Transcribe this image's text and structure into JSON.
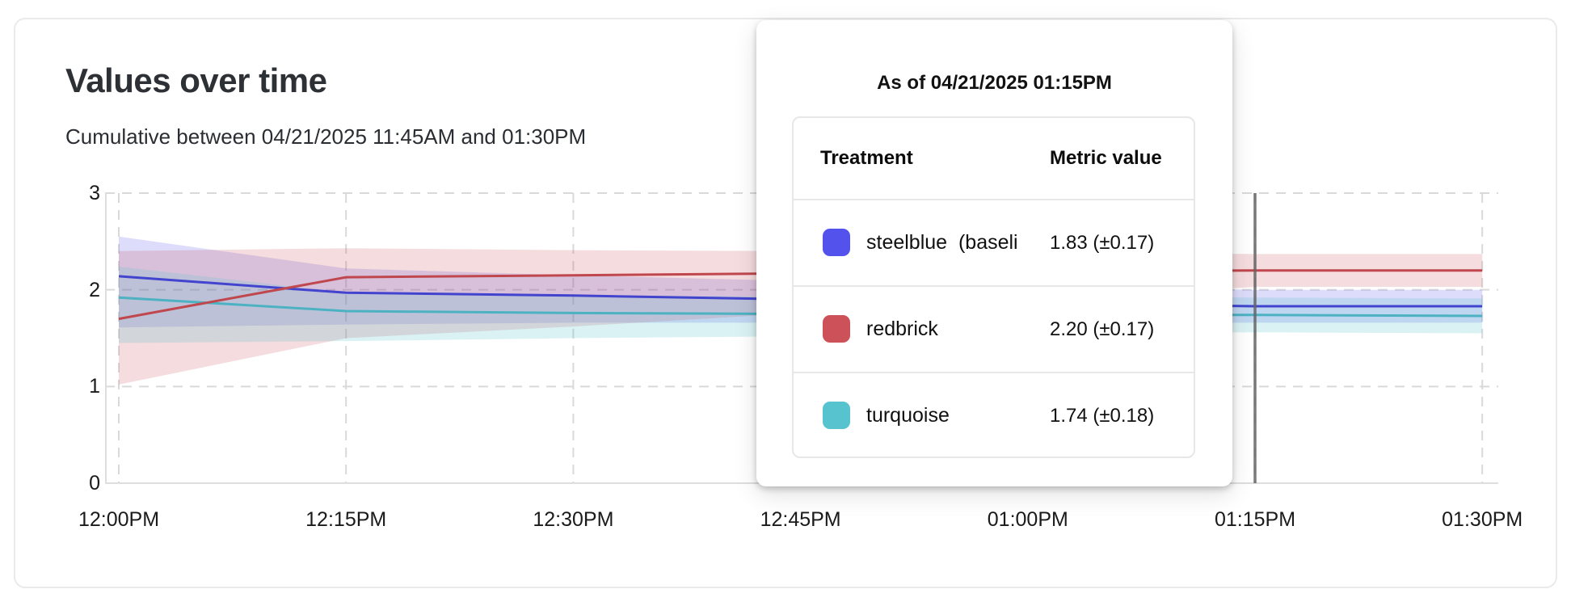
{
  "header": {
    "title": "Values over time",
    "subtitle": "Cumulative between 04/21/2025 11:45AM and 01:30PM"
  },
  "tooltip": {
    "title": "As of 04/21/2025 01:15PM",
    "columns": {
      "treatment": "Treatment",
      "metric": "Metric value"
    },
    "rows": [
      {
        "label": "steelblue  (baseli",
        "value": "1.83 (±0.17)",
        "color": "#5352ec"
      },
      {
        "label": "redbrick",
        "value": "2.20 (±0.17)",
        "color": "#cd5158"
      },
      {
        "label": "turquoise",
        "value": "1.74 (±0.18)",
        "color": "#56c3cf"
      }
    ]
  },
  "chart_data": {
    "type": "line",
    "title": "Values over time",
    "x_labels": [
      "12:00PM",
      "12:15PM",
      "12:30PM",
      "12:45PM",
      "01:00PM",
      "01:15PM",
      "01:30PM"
    ],
    "y_ticks": [
      0,
      1,
      2,
      3
    ],
    "ylim": [
      0,
      3
    ],
    "grid": "dashed",
    "grid_color": "#d9d9d9",
    "axis_border_color": "#dedede",
    "crosshair_at": "01:15PM",
    "crosshair_color": "#646464",
    "series": [
      {
        "name": "steelblue (baseline)",
        "line_color": "#4244ce",
        "band_color": "#5352ec",
        "band_opacity": 0.2,
        "values": [
          2.14,
          1.97,
          1.94,
          1.9,
          1.86,
          1.83,
          1.83
        ],
        "upper": [
          2.55,
          2.22,
          2.15,
          2.09,
          2.04,
          2.0,
          2.0
        ],
        "lower": [
          1.61,
          1.64,
          1.66,
          1.66,
          1.66,
          1.66,
          1.66
        ]
      },
      {
        "name": "redbrick",
        "line_color": "#bf474d",
        "band_color": "#cd5158",
        "band_opacity": 0.2,
        "values": [
          1.7,
          2.13,
          2.15,
          2.17,
          2.19,
          2.2,
          2.2
        ],
        "upper": [
          2.4,
          2.43,
          2.41,
          2.4,
          2.39,
          2.37,
          2.37
        ],
        "lower": [
          1.02,
          1.5,
          1.62,
          1.76,
          1.9,
          2.03,
          2.03
        ]
      },
      {
        "name": "turquoise",
        "line_color": "#4cb2c2",
        "band_color": "#56c3cf",
        "band_opacity": 0.22,
        "values": [
          1.92,
          1.78,
          1.76,
          1.75,
          1.74,
          1.74,
          1.73
        ],
        "upper": [
          2.24,
          1.97,
          1.94,
          1.93,
          1.93,
          1.92,
          1.91
        ],
        "lower": [
          1.45,
          1.47,
          1.5,
          1.52,
          1.54,
          1.56,
          1.55
        ]
      }
    ]
  }
}
